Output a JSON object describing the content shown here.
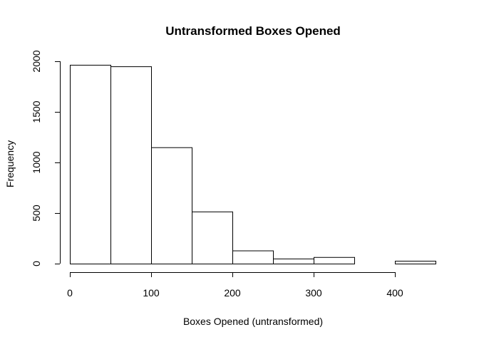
{
  "chart_data": {
    "type": "bar",
    "title": "Untransformed Boxes Opened",
    "xlabel": "Boxes Opened (untransformed)",
    "ylabel": "Frequency",
    "bins": [
      {
        "from": 0,
        "to": 50,
        "count": 1965
      },
      {
        "from": 50,
        "to": 100,
        "count": 1950
      },
      {
        "from": 100,
        "to": 150,
        "count": 1150
      },
      {
        "from": 150,
        "to": 200,
        "count": 515
      },
      {
        "from": 200,
        "to": 250,
        "count": 130
      },
      {
        "from": 250,
        "to": 300,
        "count": 50
      },
      {
        "from": 300,
        "to": 350,
        "count": 65
      },
      {
        "from": 350,
        "to": 400,
        "count": 0
      },
      {
        "from": 400,
        "to": 450,
        "count": 28
      }
    ],
    "xlim": [
      0,
      450
    ],
    "ylim": [
      0,
      2000
    ],
    "xticks": [
      0,
      100,
      200,
      300,
      400
    ],
    "yticks": [
      0,
      500,
      1000,
      1500,
      2000
    ],
    "grid": false,
    "colors": {
      "bar_fill": "#ffffff",
      "bar_stroke": "#000000"
    }
  }
}
